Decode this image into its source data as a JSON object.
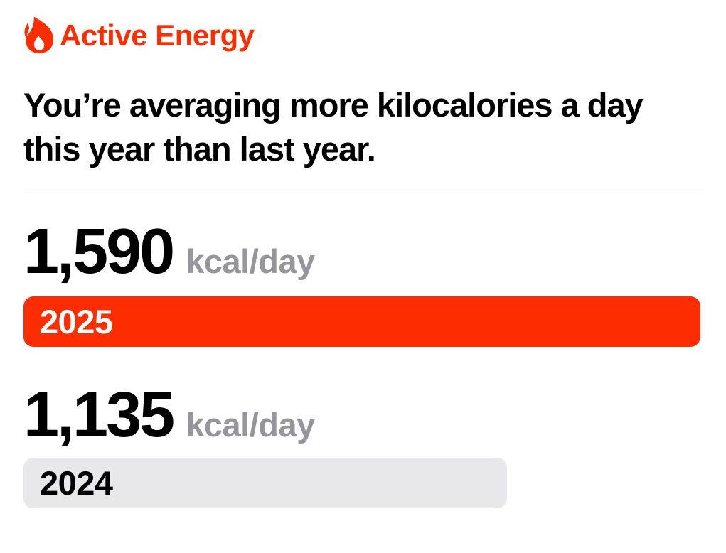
{
  "colors": {
    "accent": "#FC2D01",
    "inactive_bar": "#E8E8EA",
    "unit_text": "#95959B",
    "divider": "#D3D3D7",
    "headline_text": "#000000",
    "bar_active_text": "#FFFFFF",
    "bar_inactive_text": "#000000"
  },
  "header": {
    "icon": "flame-icon",
    "title": "Active Energy"
  },
  "headline": "You’re averaging more kilocalories a day this year than last year.",
  "comparison": {
    "max": 1590,
    "rows": [
      {
        "value": "1,590",
        "numeric": 1590,
        "unit": "kcal/day",
        "year": "2025",
        "bar_color": "#FC2D01",
        "text_color": "#FFFFFF"
      },
      {
        "value": "1,135",
        "numeric": 1135,
        "unit": "kcal/day",
        "year": "2024",
        "bar_color": "#E8E8EA",
        "text_color": "#000000"
      }
    ]
  },
  "chart_data": {
    "type": "bar",
    "orientation": "horizontal",
    "title": "Active Energy",
    "subtitle": "You’re averaging more kilocalories a day this year than last year.",
    "categories": [
      "2025",
      "2024"
    ],
    "values": [
      1590,
      1135
    ],
    "value_labels": [
      "1,590",
      "1,135"
    ],
    "unit": "kcal/day",
    "xlim": [
      0,
      1590
    ],
    "bar_colors": [
      "#FC2D01",
      "#E8E8EA"
    ],
    "grid": false,
    "legend": false
  }
}
